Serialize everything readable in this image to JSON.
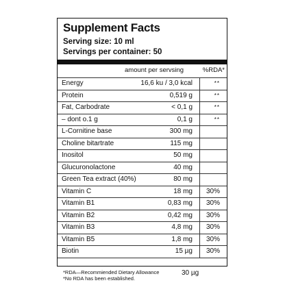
{
  "label": {
    "title": "Supplement Facts",
    "serving_size": "Serving size: 10 ml",
    "servings_per_container": "Servings per container: 50",
    "col_amount": "amount per servsing",
    "col_rda": "%RDA*"
  },
  "rows": [
    {
      "name": "Energy",
      "amount": "16,6 ku / 3,0 kcal",
      "rda": "**"
    },
    {
      "name": "Protein",
      "amount": "0,519 g",
      "rda": "**"
    },
    {
      "name": "Fat, Carbodrate",
      "amount": "< 0,1 g",
      "rda": "**"
    },
    {
      "name": "– dont o.1 g",
      "amount": "0,1 g",
      "rda": "**"
    },
    {
      "name": "L-Cornitine base",
      "amount": "300 mg",
      "rda": ""
    },
    {
      "name": "Choline bitartrate",
      "amount": "115 mg",
      "rda": ""
    },
    {
      "name": "Inositol",
      "amount": "50 mg",
      "rda": ""
    },
    {
      "name": "Glucuronolactone",
      "amount": "40 mg",
      "rda": ""
    },
    {
      "name": "Green Tea extract (40%)",
      "amount": "80 mg",
      "rda": ""
    },
    {
      "name": "Vitamin C",
      "amount": "18 mg",
      "rda": "30%"
    },
    {
      "name": "Vitamin B1",
      "amount": "0,83 mg",
      "rda": "30%"
    },
    {
      "name": "Vitamin B2",
      "amount": "0,42 mg",
      "rda": "30%"
    },
    {
      "name": "Vitamin B3",
      "amount": "4,8 mg",
      "rda": "30%"
    },
    {
      "name": "Vitamin B5",
      "amount": "1,8 mg",
      "rda": "30%"
    },
    {
      "name": "Biotin",
      "amount": "15 µg",
      "rda": "30%"
    }
  ],
  "footer": {
    "note_rda": "*RDA—Recommiended Dietary Allowance",
    "note_no_rda": "*No RDA has been established.",
    "last_amount": "30 µg"
  }
}
